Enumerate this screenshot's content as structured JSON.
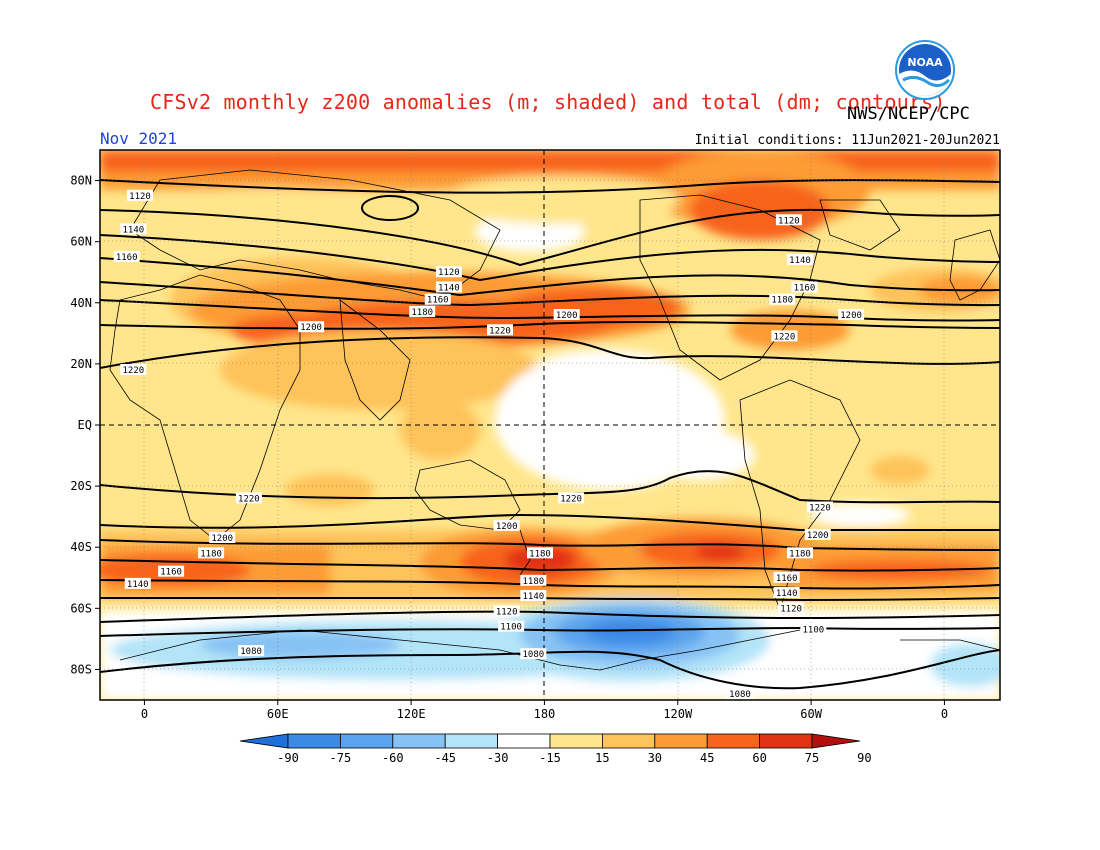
{
  "title": "CFSv2 monthly z200 anomalies (m; shaded) and total (dm; contours)",
  "agency": "NWS/NCEP/CPC",
  "logo_text": "NOAA",
  "month": "Nov 2021",
  "initial_conditions": "Initial conditions: 11Jun2021-20Jun2021",
  "lat_ticks": [
    "80N",
    "60N",
    "40N",
    "20N",
    "EQ",
    "20S",
    "40S",
    "60S",
    "80S"
  ],
  "lon_ticks": [
    "0",
    "60E",
    "120E",
    "180",
    "120W",
    "60W",
    "0"
  ],
  "colorbar": {
    "labels": [
      "-90",
      "-75",
      "-60",
      "-45",
      "-30",
      "-15",
      "15",
      "30",
      "45",
      "60",
      "75",
      "90"
    ],
    "colors": [
      "#1e6fd9",
      "#3a8ae6",
      "#5ba3ee",
      "#87c2f4",
      "#b3e4f8",
      "#ffffff",
      "#ffe68c",
      "#fec35a",
      "#fd9b36",
      "#f8641d",
      "#e23214",
      "#b40f0f"
    ]
  },
  "contour_labels": [
    {
      "text": "1120",
      "lon": -2,
      "lat": 75
    },
    {
      "text": "1140",
      "lon": -5,
      "lat": 64
    },
    {
      "text": "1160",
      "lon": -8,
      "lat": 55
    },
    {
      "text": "1200",
      "lon": 75,
      "lat": 32
    },
    {
      "text": "1220",
      "lon": -5,
      "lat": 18
    },
    {
      "text": "1120",
      "lon": 137,
      "lat": 50
    },
    {
      "text": "1140",
      "lon": 137,
      "lat": 45
    },
    {
      "text": "1160",
      "lon": 132,
      "lat": 41
    },
    {
      "text": "1180",
      "lon": 125,
      "lat": 37
    },
    {
      "text": "1220",
      "lon": 160,
      "lat": 31
    },
    {
      "text": "1200",
      "lon": 190,
      "lat": 36
    },
    {
      "text": "1120",
      "lon": 290,
      "lat": 67
    },
    {
      "text": "1140",
      "lon": 295,
      "lat": 54
    },
    {
      "text": "1160",
      "lon": 297,
      "lat": 45
    },
    {
      "text": "1180",
      "lon": 287,
      "lat": 41
    },
    {
      "text": "1200",
      "lon": 318,
      "lat": 36
    },
    {
      "text": "1220",
      "lon": 288,
      "lat": 29
    },
    {
      "text": "1220",
      "lon": 47,
      "lat": -24
    },
    {
      "text": "1200",
      "lon": 35,
      "lat": -37
    },
    {
      "text": "1180",
      "lon": 30,
      "lat": -42
    },
    {
      "text": "1160",
      "lon": 12,
      "lat": -48
    },
    {
      "text": "1140",
      "lon": -3,
      "lat": -52
    },
    {
      "text": "1220",
      "lon": 192,
      "lat": -24
    },
    {
      "text": "1200",
      "lon": 163,
      "lat": -33
    },
    {
      "text": "1180",
      "lon": 178,
      "lat": -42
    },
    {
      "text": "1180",
      "lon": 175,
      "lat": -51
    },
    {
      "text": "1140",
      "lon": 175,
      "lat": -56
    },
    {
      "text": "1120",
      "lon": 163,
      "lat": -61
    },
    {
      "text": "1100",
      "lon": 165,
      "lat": -66
    },
    {
      "text": "1080",
      "lon": 175,
      "lat": -75
    },
    {
      "text": "1080",
      "lon": 48,
      "lat": -74
    },
    {
      "text": "1220",
      "lon": 304,
      "lat": -27
    },
    {
      "text": "1200",
      "lon": 303,
      "lat": -36
    },
    {
      "text": "1180",
      "lon": 295,
      "lat": -42
    },
    {
      "text": "1160",
      "lon": 289,
      "lat": -50
    },
    {
      "text": "1140",
      "lon": 289,
      "lat": -55
    },
    {
      "text": "1120",
      "lon": 291,
      "lat": -60
    },
    {
      "text": "1100",
      "lon": 301,
      "lat": -67
    },
    {
      "text": "1080",
      "lon": 268,
      "lat": -88
    }
  ],
  "colors": {
    "title": "#e8261a",
    "month": "#1f44d8"
  }
}
